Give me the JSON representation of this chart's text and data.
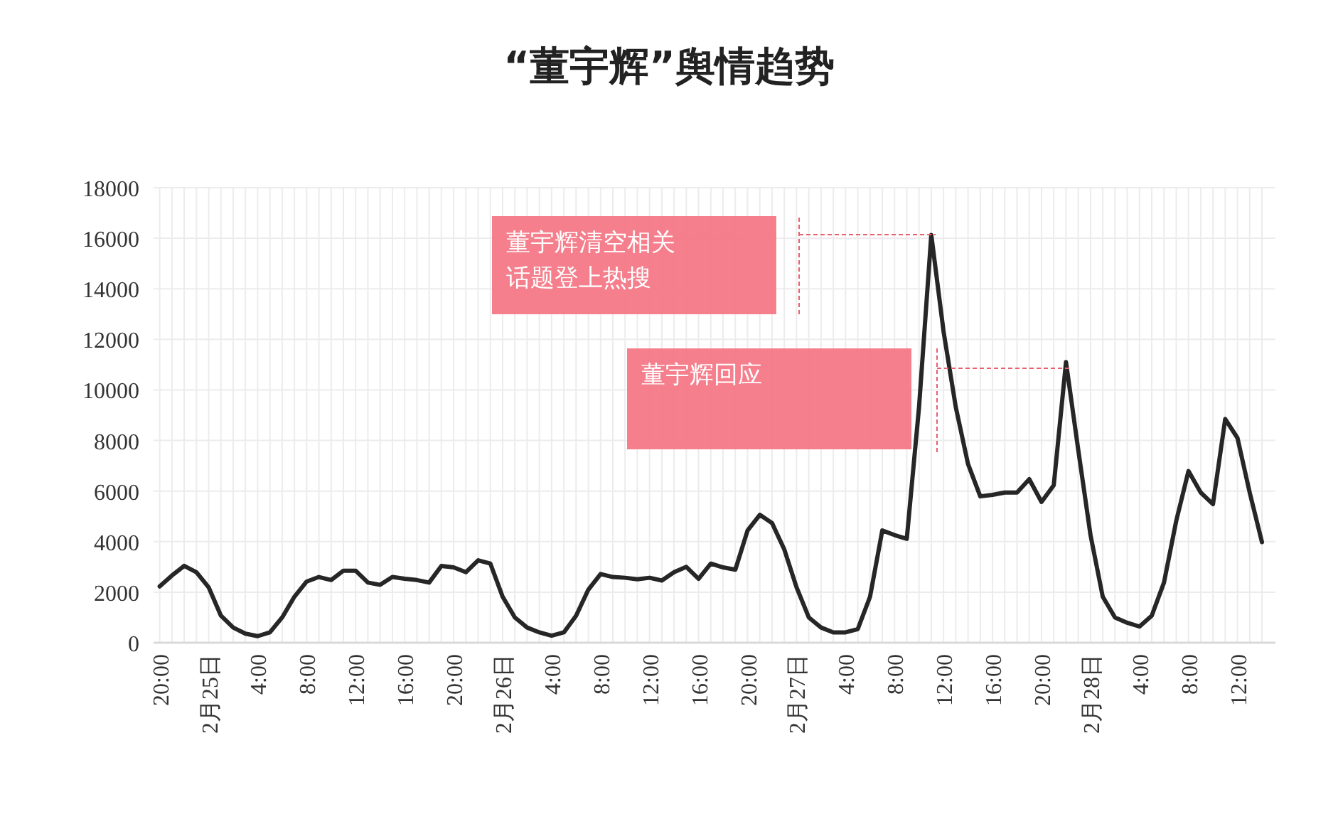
{
  "chart_data": {
    "type": "line",
    "title": "“董宇辉”舆情趋势",
    "categories": [
      "20:00",
      null,
      null,
      null,
      "2月25日",
      null,
      null,
      null,
      "4:00",
      null,
      null,
      null,
      "8:00",
      null,
      null,
      null,
      "12:00",
      null,
      null,
      null,
      "16:00",
      null,
      null,
      null,
      "20:00",
      null,
      null,
      null,
      "2月26日",
      null,
      null,
      null,
      "4:00",
      null,
      null,
      null,
      "8:00",
      null,
      null,
      null,
      "12:00",
      null,
      null,
      null,
      "16:00",
      null,
      null,
      null,
      "20:00",
      null,
      null,
      null,
      "2月27日",
      null,
      null,
      null,
      "4:00",
      null,
      null,
      null,
      "8:00",
      null,
      null,
      null,
      "12:00",
      null,
      null,
      null,
      "16:00",
      null,
      null,
      null,
      "20:00",
      null,
      null,
      null,
      "2月28日",
      null,
      null,
      null,
      "4:00",
      null,
      null,
      null,
      "8:00",
      null,
      null,
      null,
      "12:00",
      null,
      null
    ],
    "series": [
      {
        "color": "#262626",
        "values": [
          2230,
          2660,
          3040,
          2790,
          2190,
          1070,
          600,
          360,
          260,
          410,
          1000,
          1820,
          2420,
          2600,
          2480,
          2850,
          2850,
          2380,
          2290,
          2600,
          2530,
          2480,
          2380,
          3040,
          2980,
          2790,
          3260,
          3130,
          1820,
          1000,
          600,
          410,
          280,
          410,
          1070,
          2100,
          2720,
          2600,
          2570,
          2510,
          2570,
          2460,
          2790,
          3000,
          2530,
          3130,
          2980,
          2890,
          4440,
          5060,
          4730,
          3690,
          2190,
          1000,
          600,
          410,
          410,
          540,
          1820,
          4440,
          4260,
          4110,
          9320,
          16130,
          12320,
          9320,
          7070,
          5790,
          5850,
          5940,
          5940,
          6470,
          5570,
          6230,
          11100,
          7630,
          4260,
          1820,
          1000,
          790,
          640,
          1070,
          2380,
          4820,
          6790,
          5940,
          5480,
          8850,
          8100,
          5940,
          3980
        ]
      }
    ],
    "ylim": [
      0,
      18000
    ],
    "yticks": [
      0,
      2000,
      4000,
      6000,
      8000,
      10000,
      12000,
      14000,
      16000,
      18000
    ],
    "grid": true,
    "annotations": [
      "董宇辉清空相关话题登上热搜",
      "董宇辉回应"
    ]
  }
}
